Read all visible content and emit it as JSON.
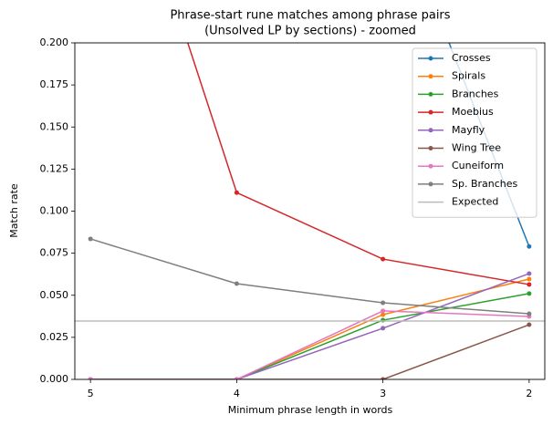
{
  "chart_data": {
    "type": "line",
    "title": [
      "Phrase-start rune matches among phrase pairs",
      "(Unsolved LP by sections) - zoomed"
    ],
    "x_label": "Minimum phrase length in words",
    "y_label": "Match rate",
    "categories": [
      "5",
      "4",
      "3",
      "2"
    ],
    "ylim": [
      0,
      0.2
    ],
    "yticks": [
      {
        "value": 0,
        "label": "0.000"
      },
      0.025,
      {
        "value": 0.05,
        "label": "0.050"
      },
      0.075,
      {
        "value": 0.1,
        "label": "0.100"
      },
      0.125,
      {
        "value": 0.15,
        "label": "0.150"
      },
      0.175,
      {
        "value": 0.2,
        "label": "0.200"
      }
    ],
    "legend": "upper right",
    "series": [
      {
        "name": "Crosses",
        "color": "#1f77b4",
        "values": [
          null,
          null,
          0.3,
          0.079
        ]
      },
      {
        "name": "Spirals",
        "color": "#ff7f0e",
        "values": [
          0,
          0,
          0.0385,
          0.0596
        ]
      },
      {
        "name": "Branches",
        "color": "#2ca02c",
        "values": [
          0,
          0,
          0.0352,
          0.051
        ]
      },
      {
        "name": "Moebius",
        "color": "#d62728",
        "values": [
          0.377,
          0.111,
          0.0715,
          0.0564
        ]
      },
      {
        "name": "Mayfly",
        "color": "#9467bd",
        "values": [
          0,
          0,
          0.0304,
          0.0629
        ]
      },
      {
        "name": "Wing Tree",
        "color": "#8c564b",
        "values": [
          0,
          0,
          0,
          0.0325
        ]
      },
      {
        "name": "Cuneiform",
        "color": "#e377c2",
        "values": [
          0,
          0,
          0.0407,
          0.0374
        ]
      },
      {
        "name": "Sp. Branches",
        "color": "#7f7f7f",
        "values": [
          0.0835,
          0.0569,
          0.0455,
          0.039
        ]
      }
    ],
    "hlines": [
      {
        "name": "Expected",
        "color": "#bbbbbb",
        "y": 0.0347
      }
    ]
  }
}
